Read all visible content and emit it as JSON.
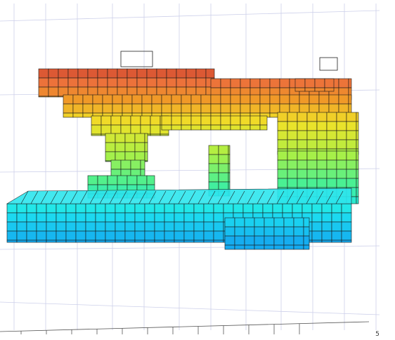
{
  "axis": {
    "tick_label": "5"
  }
}
